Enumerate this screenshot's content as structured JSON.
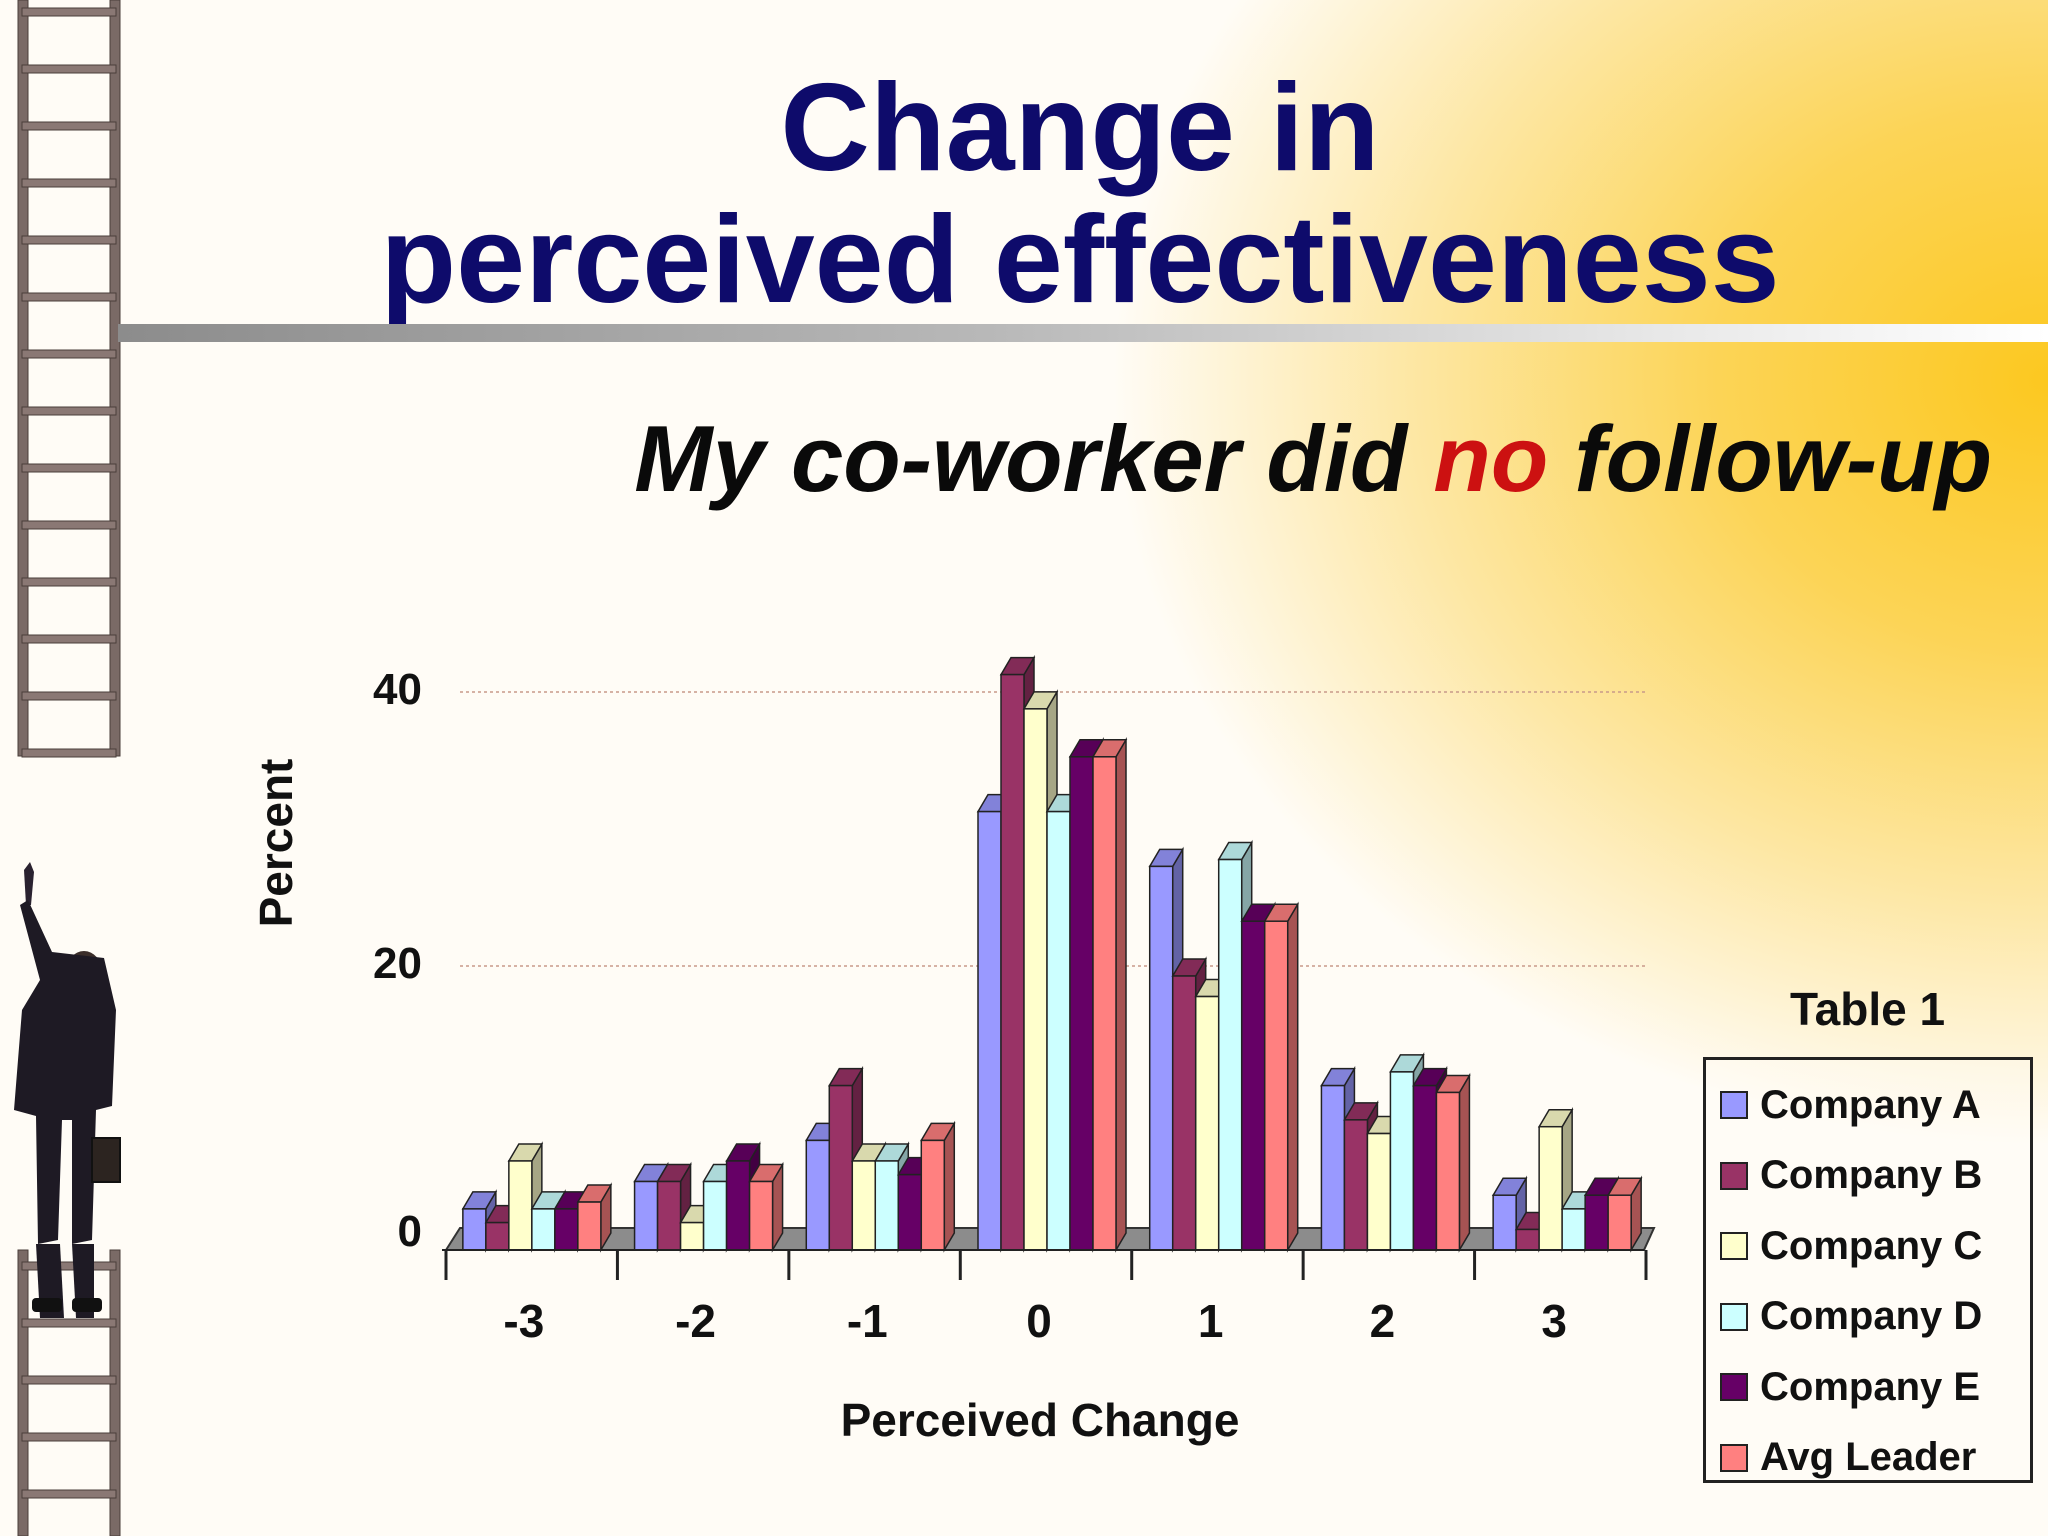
{
  "title": {
    "line1": "Change in",
    "line2": "perceived effectiveness"
  },
  "subtitle": {
    "before": "My co-worker did ",
    "highlight": "no",
    "after": " follow-up"
  },
  "colors": {
    "title": "#0e0b6b",
    "highlight": "#cc1111"
  },
  "chart_data": {
    "type": "bar",
    "categories": [
      "-3",
      "-2",
      "-1",
      "0",
      "1",
      "2",
      "3"
    ],
    "xlabel": "Perceived Change",
    "ylabel": "Percent",
    "yticks": [
      0,
      20,
      40
    ],
    "ylim": [
      0,
      44
    ],
    "grid": true,
    "legend_position": "right",
    "legend_title": "Table 1",
    "series": [
      {
        "name": "Company A",
        "color": "#9999ff",
        "values": [
          3,
          5,
          8,
          32,
          28,
          12,
          4
        ]
      },
      {
        "name": "Company B",
        "color": "#993366",
        "values": [
          2,
          5,
          12,
          42,
          20,
          9.5,
          1.5
        ]
      },
      {
        "name": "Company C",
        "color": "#ffffcc",
        "values": [
          6.5,
          2,
          6.5,
          39.5,
          18.5,
          8.5,
          9
        ]
      },
      {
        "name": "Company D",
        "color": "#ccffff",
        "values": [
          3,
          5,
          6.5,
          32,
          28.5,
          13,
          3
        ]
      },
      {
        "name": "Company E",
        "color": "#660066",
        "values": [
          3,
          6.5,
          5.5,
          36,
          24,
          12,
          4
        ]
      },
      {
        "name": "Avg Leader",
        "color": "#ff8080",
        "values": [
          3.5,
          5,
          8,
          36,
          24,
          11.5,
          4
        ]
      }
    ]
  }
}
